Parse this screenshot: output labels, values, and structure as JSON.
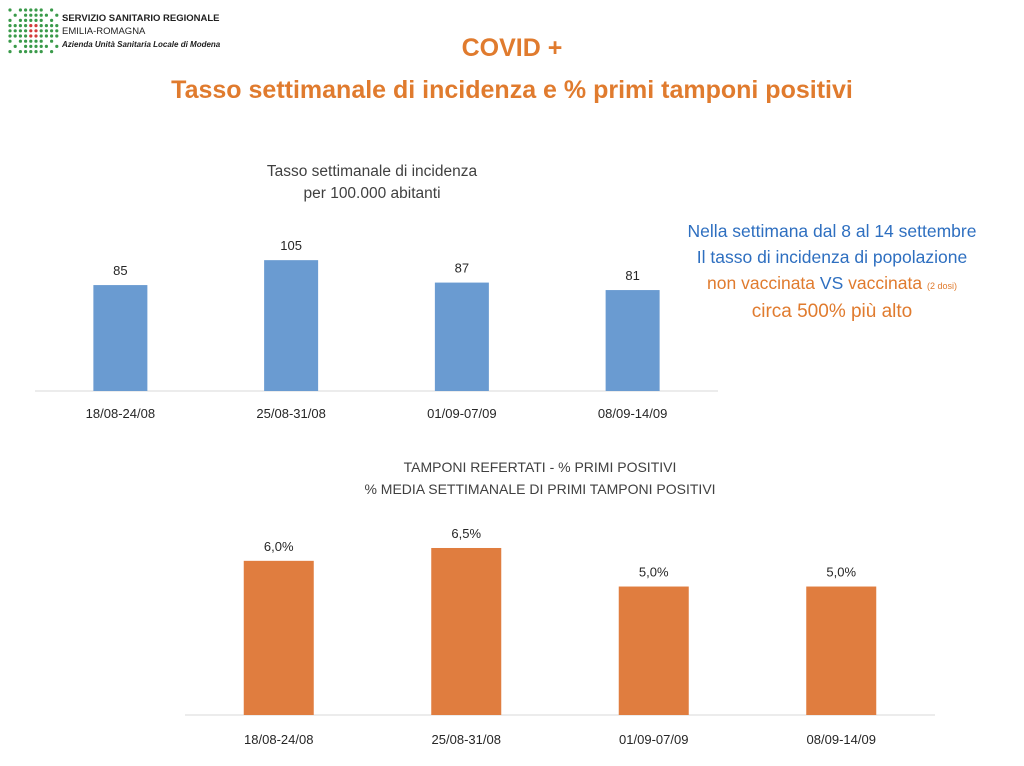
{
  "header": {
    "org_line1": "SERVIZIO SANITARIO REGIONALE",
    "org_line2": "EMILIA-ROMAGNA",
    "org_line3": "Azienda Unità Sanitaria Locale di Modena",
    "logo_icon": "dotted-cross-logo-icon",
    "title_line1": "COVID +",
    "title_line2": "Tasso settimanale di incidenza e % primi tamponi positivi"
  },
  "note": {
    "line1": "Nella settimana dal 8 al 14 settembre",
    "line2": "Il tasso di incidenza di popolazione",
    "line3_part1": "non vaccinata",
    "line3_vs": "VS",
    "line3_part2": "vaccinata",
    "line3_small": "(2 dosi)",
    "line4": "circa 500% più alto"
  },
  "colors": {
    "accent_orange": "#e07b2e",
    "bar_blue": "#6a9bd1",
    "bar_orange": "#e07d3f",
    "note_blue": "#2e6fc0"
  },
  "chart_data": [
    {
      "type": "bar",
      "title": "Tasso settimanale di incidenza\nper 100.000 abitanti",
      "title_lines": [
        "Tasso settimanale di incidenza",
        "per 100.000 abitanti"
      ],
      "categories": [
        "18/08-24/08",
        "25/08-31/08",
        "01/09-07/09",
        "08/09-14/09"
      ],
      "values": [
        85,
        105,
        87,
        81
      ],
      "labels": [
        "85",
        "105",
        "87",
        "81"
      ],
      "ylim": [
        0,
        130
      ],
      "grid": false
    },
    {
      "type": "bar",
      "title": "TAMPONI REFERTATI - % PRIMI POSITIVI\n% MEDIA SETTIMANALE DI PRIMI TAMPONI POSITIVI",
      "title_lines": [
        "TAMPONI REFERTATI - % PRIMI POSITIVI",
        "% MEDIA SETTIMANALE DI PRIMI TAMPONI POSITIVI"
      ],
      "categories": [
        "18/08-24/08",
        "25/08-31/08",
        "01/09-07/09",
        "08/09-14/09"
      ],
      "values": [
        6.0,
        6.5,
        5.0,
        5.0
      ],
      "labels": [
        "6,0%",
        "6,5%",
        "5,0%",
        "5,0%"
      ],
      "ylim": [
        0,
        7.2
      ],
      "grid": false
    }
  ]
}
